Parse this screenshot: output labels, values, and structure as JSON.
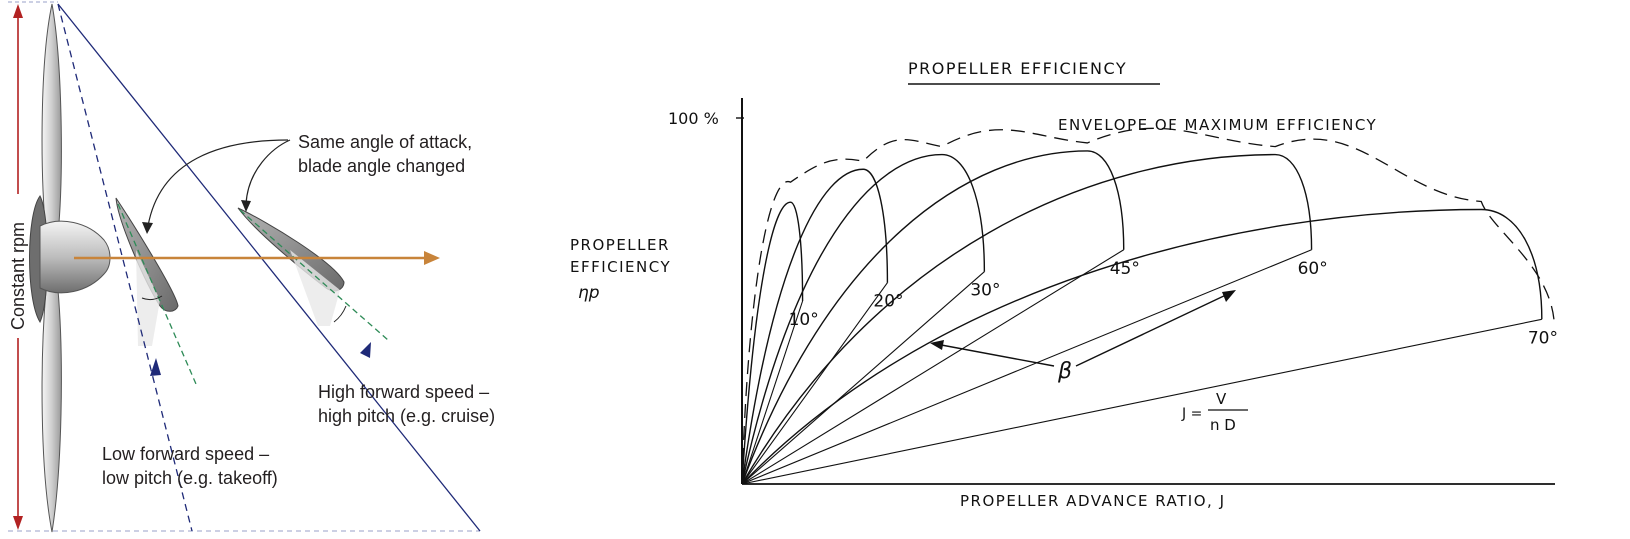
{
  "left_diagram": {
    "constant_rpm_label": "Constant rpm",
    "callout_line1": "Same angle of attack,",
    "callout_line2": "blade angle changed",
    "high_speed_line1": "High forward speed –",
    "high_speed_line2": "high pitch (e.g. cruise)",
    "low_speed_line1": "Low forward speed –",
    "low_speed_line2": "low pitch (e.g. takeoff)",
    "colors": {
      "rpm_arrow": "#b22222",
      "thrust_arrow": "#c8843a",
      "navy": "#1f2a78",
      "blade": "#8a8a8a",
      "chord_dash": "#2e8b57"
    }
  },
  "chart_data": {
    "type": "line",
    "title": "PROPELLER EFFICIENCY",
    "ylabel_line1": "PROPELLER",
    "ylabel_line2": "EFFICIENCY",
    "ylabel_symbol": "ηp",
    "xlabel": "PROPELLER ADVANCE RATIO, J",
    "y_tick_top": "100 %",
    "envelope_label": "ENVELOPE OF MAXIMUM EFFICIENCY",
    "beta_symbol": "β",
    "formula_lhs": "J =",
    "formula_num": "V",
    "formula_den": "n D",
    "series": [
      {
        "name": "10°",
        "label": "10°",
        "peak_j": 0.08,
        "peak_eff": 0.77,
        "end_j": 0.1,
        "end_eff": 0.5
      },
      {
        "name": "20°",
        "label": "20°",
        "peak_j": 0.2,
        "peak_eff": 0.86,
        "end_j": 0.24,
        "end_eff": 0.55
      },
      {
        "name": "30°",
        "label": "30°",
        "peak_j": 0.33,
        "peak_eff": 0.9,
        "end_j": 0.4,
        "end_eff": 0.58
      },
      {
        "name": "45°",
        "label": "45°",
        "peak_j": 0.57,
        "peak_eff": 0.91,
        "end_j": 0.63,
        "end_eff": 0.64
      },
      {
        "name": "60°",
        "label": "60°",
        "peak_j": 0.88,
        "peak_eff": 0.9,
        "end_j": 0.94,
        "end_eff": 0.64
      },
      {
        "name": "70°",
        "label": "70°",
        "peak_j": 1.22,
        "peak_eff": 0.75,
        "end_j": 1.32,
        "end_eff": 0.45
      }
    ],
    "xlim": [
      0,
      1.35
    ],
    "ylim": [
      0,
      1.0
    ]
  }
}
